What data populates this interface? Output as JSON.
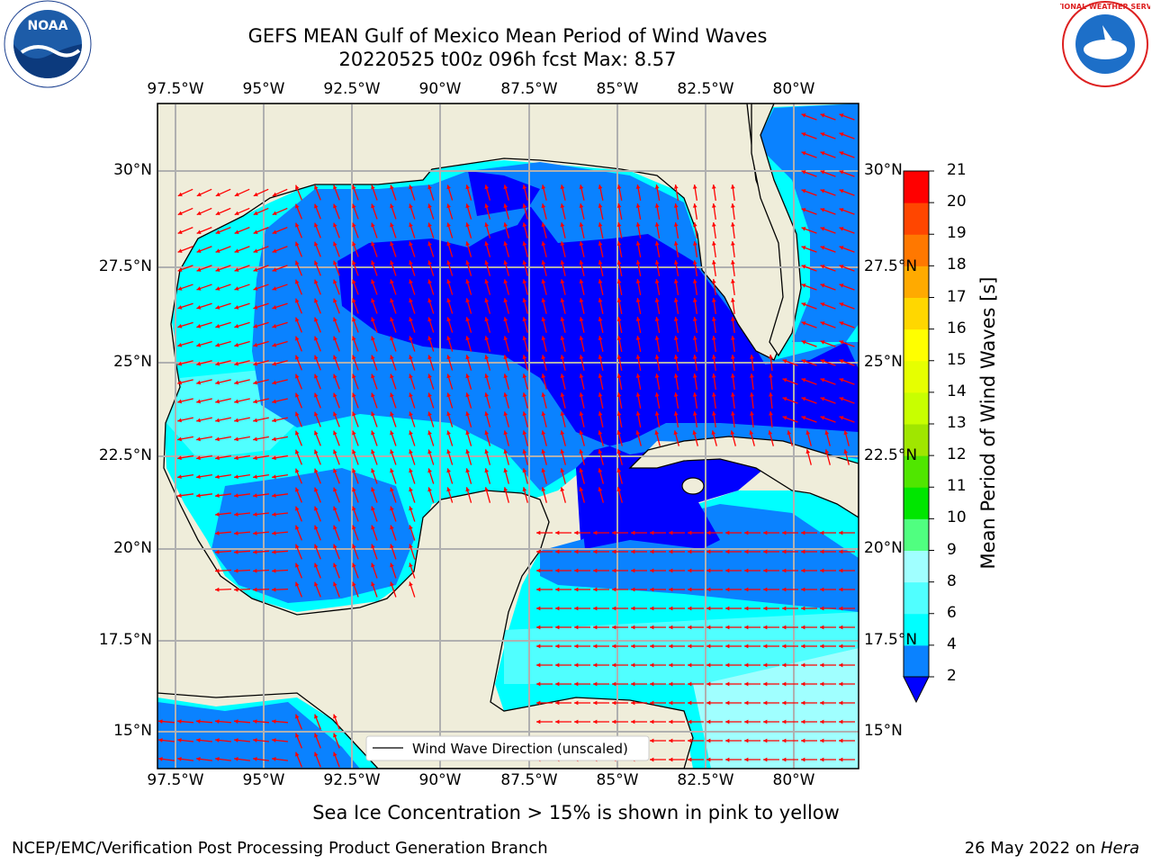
{
  "title_line1": "GEFS MEAN Gulf of Mexico Mean Period of Wind Waves",
  "title_line2": "20220525 t00z 096h fcst   Max: 8.57",
  "lon_labels": [
    "97.5°W",
    "95°W",
    "92.5°W",
    "90°W",
    "87.5°W",
    "85°W",
    "82.5°W",
    "80°W"
  ],
  "lat_labels": [
    "30°N",
    "27.5°N",
    "25°N",
    "22.5°N",
    "20°N",
    "17.5°N",
    "15°N"
  ],
  "legend_label": "Wind Wave Direction (unscaled)",
  "colorbar": {
    "label": "Mean Period of Wind Waves [s]",
    "ticks": [
      "2",
      "4",
      "6",
      "8",
      "9",
      "10",
      "11",
      "12",
      "13",
      "14",
      "15",
      "16",
      "17",
      "18",
      "19",
      "20",
      "21"
    ],
    "colors": [
      "#0000ff",
      "#0a82ff",
      "#00ffff",
      "#50ffff",
      "#a0ffff",
      "#50ff80",
      "#00e600",
      "#50e600",
      "#a0e600",
      "#c8ff00",
      "#e6ff00",
      "#ffff00",
      "#ffd700",
      "#ffaa00",
      "#ff7800",
      "#ff4600",
      "#ff0000"
    ]
  },
  "caption": "Sea Ice Concentration > 15% is shown in pink to yellow",
  "footer_left": "NCEP/EMC/Verification Post Processing Product Generation Branch",
  "footer_right_prefix": "26 May 2022 on ",
  "footer_right_host": "Hera",
  "logos": {
    "noaa": "NOAA",
    "nws": "NATIONAL WEATHER SERVICE"
  },
  "colors": {
    "land": "#efedda",
    "arrow": "#ff0000",
    "grid": "#b0b0b0"
  }
}
